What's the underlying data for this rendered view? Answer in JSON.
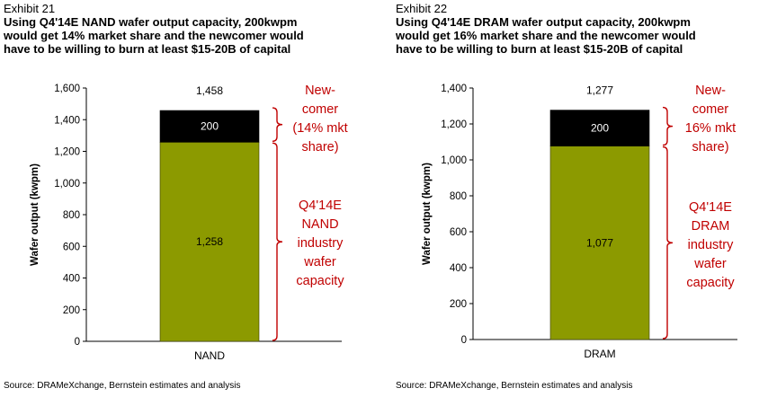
{
  "chart_data": [
    {
      "type": "bar",
      "exhibit_label": "Exhibit 21",
      "title_lines": [
        "Using Q4'14E NAND wafer output capacity, 200kwpm",
        "would get 14% market share and the newcomer would",
        "have to be willing to burn at least $15-20B of capital"
      ],
      "ylabel": "Wafer output (kwpm)",
      "ylim": [
        0,
        1600
      ],
      "yticks": [
        "0",
        "200",
        "400",
        "600",
        "800",
        "1,000",
        "1,200",
        "1,400",
        "1,600"
      ],
      "categories": [
        "NAND"
      ],
      "series": [
        {
          "name": "Q4'14E NAND industry wafer capacity",
          "values": [
            1258
          ],
          "label": "1,258",
          "color": "#8c9a00"
        },
        {
          "name": "New-comer",
          "values": [
            200
          ],
          "label": "200",
          "color": "#000000"
        }
      ],
      "total": 1458,
      "total_label": "1,458",
      "annotations": {
        "newcomer": [
          "New-",
          "comer",
          "(14% mkt",
          "share)"
        ],
        "industry": [
          "Q4'14E",
          "NAND",
          "industry",
          "wafer",
          "capacity"
        ]
      },
      "source": "Source: DRAMeXchange, Bernstein estimates and analysis"
    },
    {
      "type": "bar",
      "exhibit_label": "Exhibit 22",
      "title_lines": [
        "Using Q4'14E DRAM wafer output capacity, 200kwpm",
        "would get 16% market share and the newcomer would",
        "have to be willing to burn at least $15-20B of capital"
      ],
      "ylabel": "Wafer output (kwpm)",
      "ylim": [
        0,
        1400
      ],
      "yticks": [
        "0",
        "200",
        "400",
        "600",
        "800",
        "1,000",
        "1,200",
        "1,400"
      ],
      "categories": [
        "DRAM"
      ],
      "series": [
        {
          "name": "Q4'14E DRAM industry wafer capacity",
          "values": [
            1077
          ],
          "label": "1,077",
          "color": "#8c9a00"
        },
        {
          "name": "New-comer",
          "values": [
            200
          ],
          "label": "200",
          "color": "#000000"
        }
      ],
      "total": 1277,
      "total_label": "1,277",
      "annotations": {
        "newcomer": [
          "New-",
          "comer",
          "16% mkt",
          "share)"
        ],
        "industry": [
          "Q4'14E",
          "DRAM",
          "industry",
          "wafer",
          "capacity"
        ]
      },
      "source": "Source: DRAMeXchange, Bernstein estimates and analysis"
    }
  ]
}
